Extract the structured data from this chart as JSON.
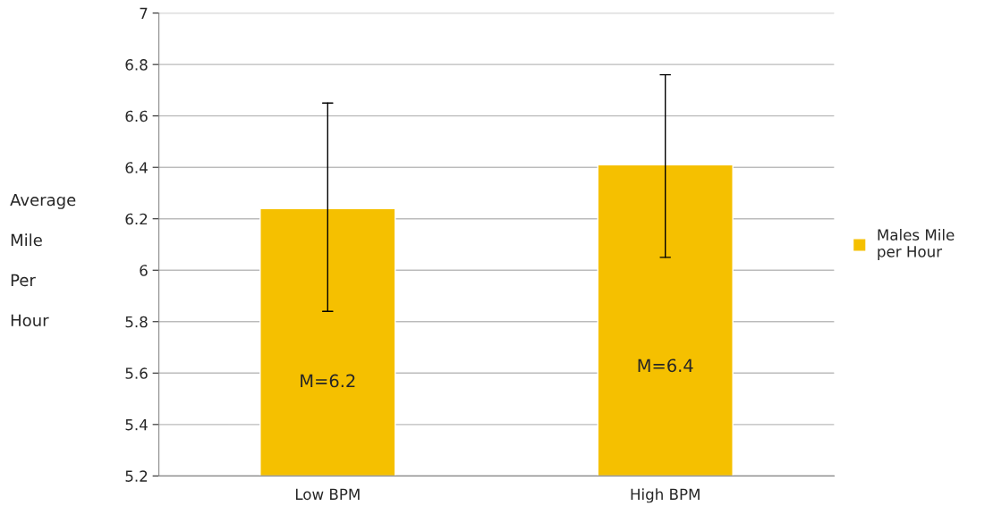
{
  "chart_data": {
    "type": "bar",
    "ylabel": "Average\nMile\nPer\nHour",
    "categories": [
      "Low BPM",
      "High BPM"
    ],
    "series": [
      {
        "name": "Males Mile\nper Hour",
        "color": "#f5c000",
        "values": [
          6.24,
          6.41
        ],
        "errors": [
          [
            5.84,
            6.65
          ],
          [
            6.05,
            6.76
          ]
        ],
        "value_labels": [
          "M=6.2",
          "M=6.4"
        ]
      }
    ],
    "ylim": [
      5.2,
      7
    ],
    "yticks": [
      5.2,
      5.4,
      5.6,
      5.8,
      6,
      6.2,
      6.4,
      6.6,
      6.8,
      7
    ],
    "grid": "y",
    "legend": "right"
  }
}
